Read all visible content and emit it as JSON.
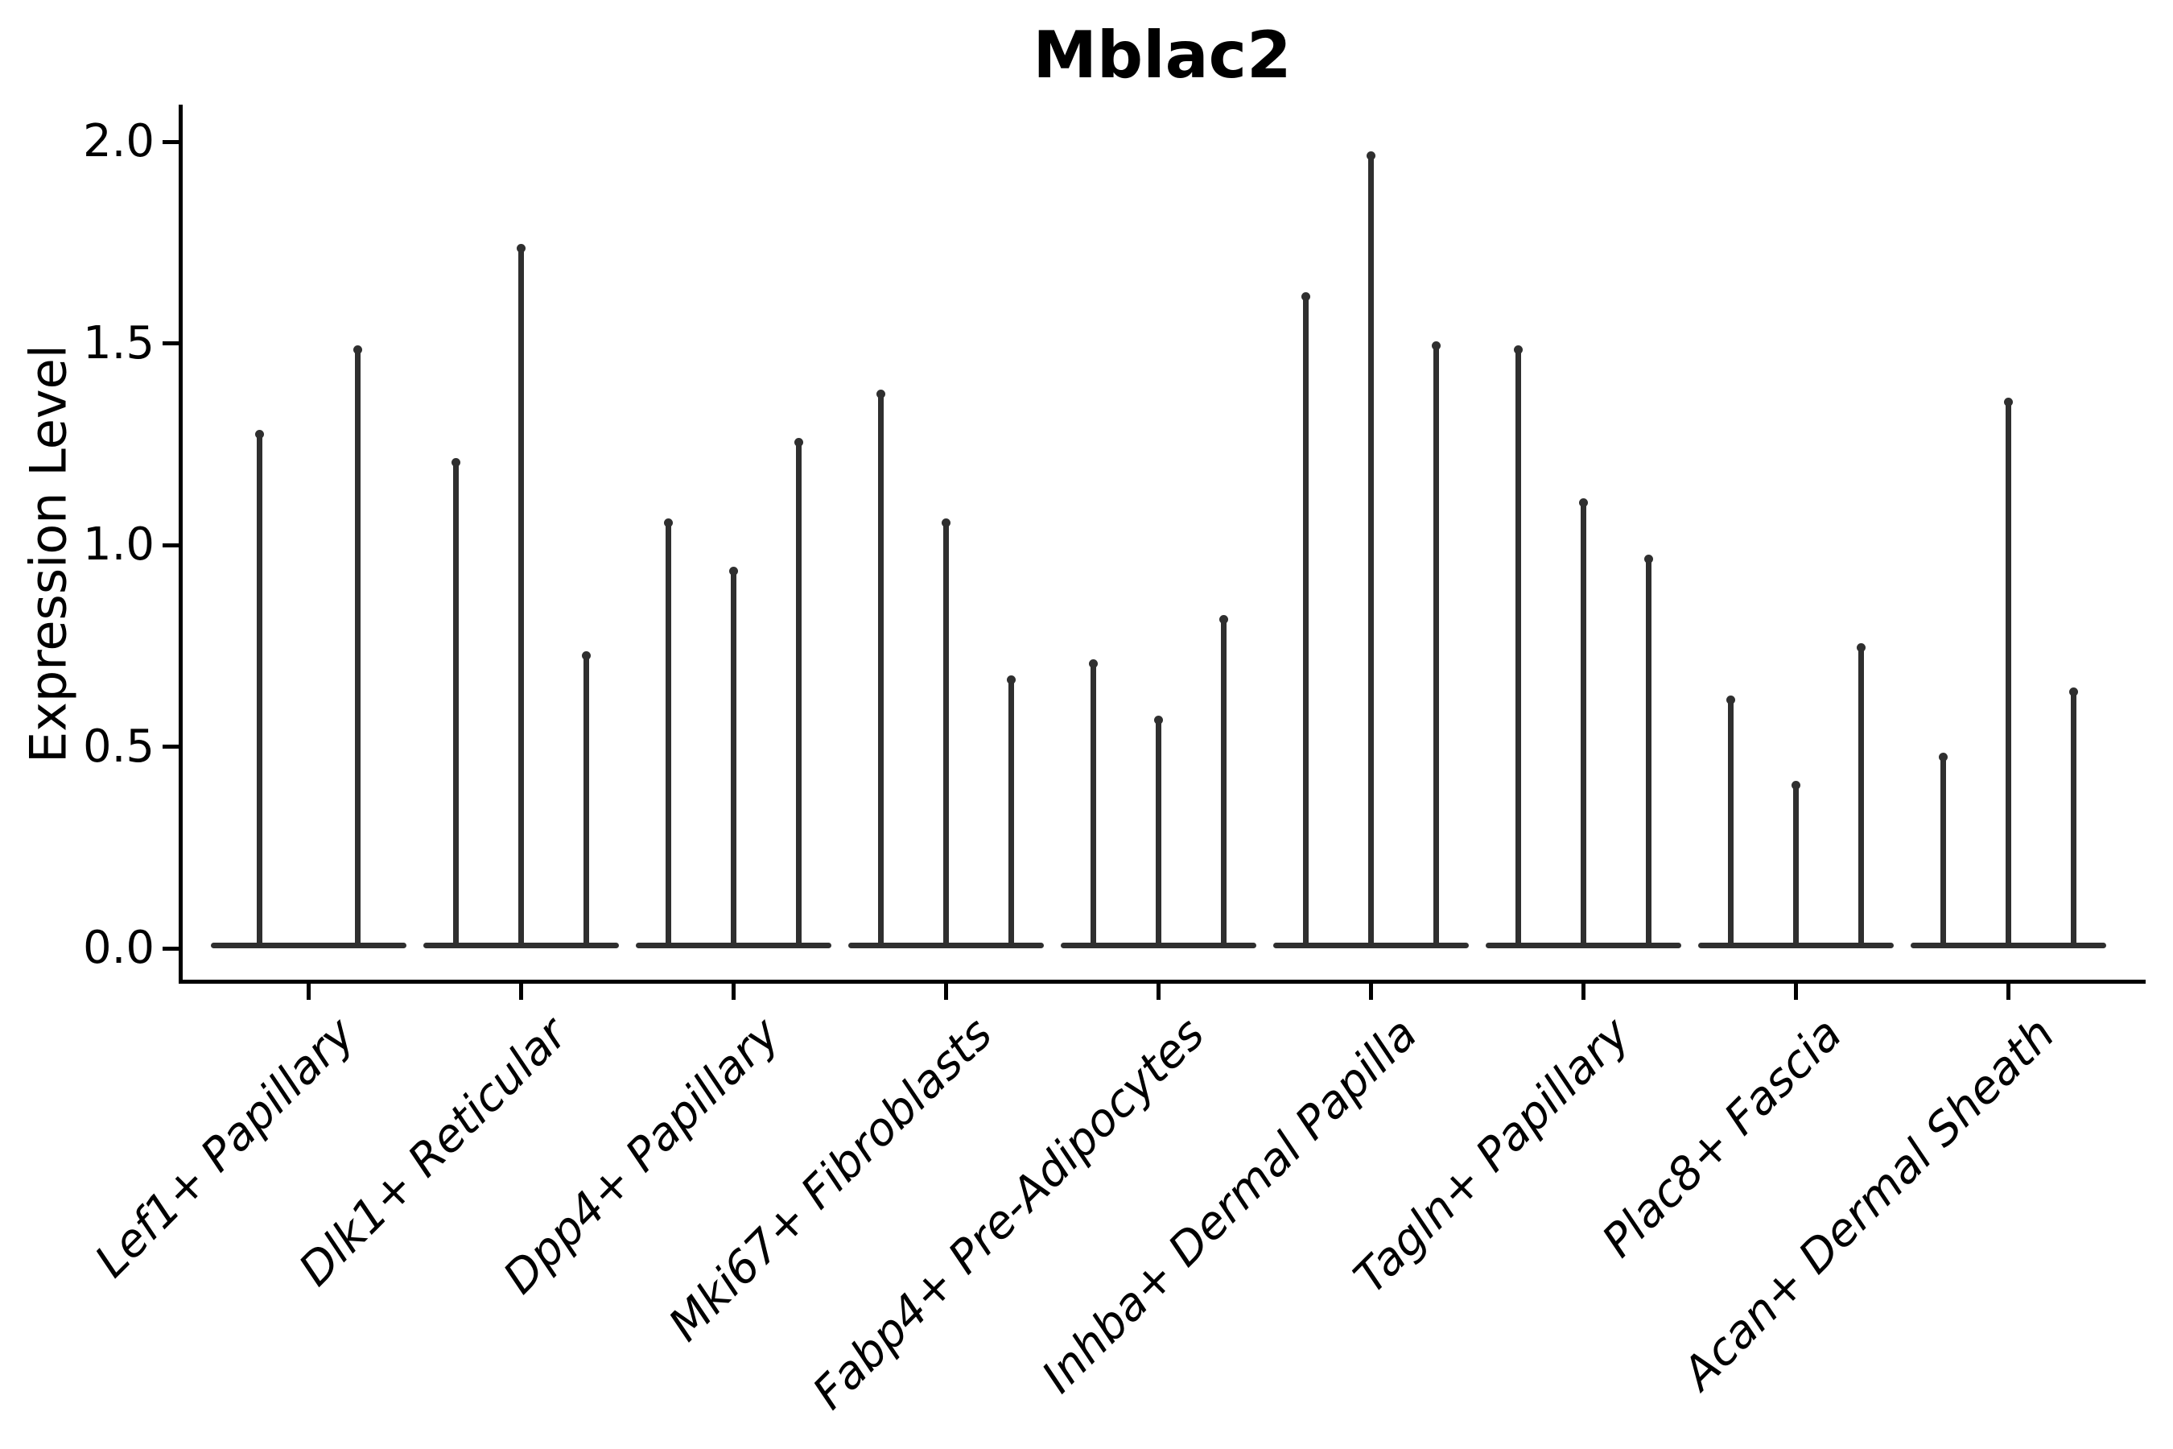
{
  "chart_data": {
    "type": "violin",
    "title": "Mblac2",
    "ylabel": "Expression Level",
    "xlabel": "",
    "ylim": [
      0,
      2.05
    ],
    "yticks": [
      0.0,
      0.5,
      1.0,
      1.5,
      2.0
    ],
    "ytick_labels": [
      "0.0",
      "0.5",
      "1.0",
      "1.5",
      "2.0"
    ],
    "grid": "off",
    "legend": "none",
    "categories": [
      "Lef1+ Papillary",
      "Dlk1+ Reticular",
      "Dpp4+ Papillary",
      "Mki67+ Fibroblasts",
      "Fabp4+ Pre-Adipocytes",
      "Inhba+ Dermal Papilla",
      "Tagln+ Papillary",
      "Plac8+ Fascia",
      "Acan+ Dermal Sheath"
    ],
    "series": [
      {
        "category": "Lef1+ Papillary",
        "violin_peak_values": [
          1.28,
          1.49
        ]
      },
      {
        "category": "Dlk1+ Reticular",
        "violin_peak_values": [
          1.21,
          1.74,
          0.73
        ]
      },
      {
        "category": "Dpp4+ Papillary",
        "violin_peak_values": [
          1.06,
          0.94,
          1.26
        ]
      },
      {
        "category": "Mki67+ Fibroblasts",
        "violin_peak_values": [
          1.38,
          1.06,
          0.67
        ]
      },
      {
        "category": "Fabp4+ Pre-Adipocytes",
        "violin_peak_values": [
          0.71,
          0.57,
          0.82
        ]
      },
      {
        "category": "Inhba+ Dermal Papilla",
        "violin_peak_values": [
          1.62,
          1.97,
          1.5
        ]
      },
      {
        "category": "Tagln+ Papillary",
        "violin_peak_values": [
          1.49,
          1.11,
          0.97
        ]
      },
      {
        "category": "Plac8+ Fascia",
        "violin_peak_values": [
          0.62,
          0.41,
          0.75
        ]
      },
      {
        "category": "Acan+ Dermal Sheath",
        "violin_peak_values": [
          0.48,
          1.36,
          0.64
        ]
      }
    ],
    "description_colors": {
      "ink": "#2f2f2f",
      "background": "#ffffff"
    }
  }
}
